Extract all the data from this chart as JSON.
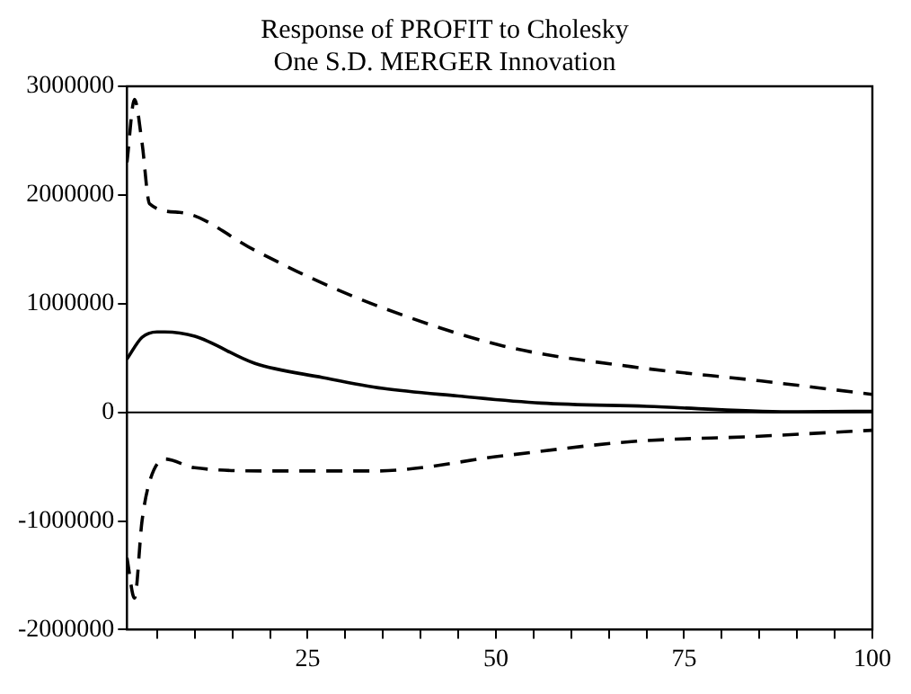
{
  "chart_data": {
    "type": "line",
    "title": [
      "Response of PROFIT to Cholesky",
      "One S.D. MERGER Innovation"
    ],
    "xlim": [
      1,
      100
    ],
    "xticks": [
      {
        "value": 5,
        "label": null
      },
      {
        "value": 10,
        "label": null
      },
      {
        "value": 15,
        "label": null
      },
      {
        "value": 20,
        "label": null
      },
      25,
      {
        "value": 30,
        "label": null
      },
      {
        "value": 35,
        "label": null
      },
      {
        "value": 40,
        "label": null
      },
      {
        "value": 45,
        "label": null
      },
      50,
      {
        "value": 55,
        "label": null
      },
      {
        "value": 60,
        "label": null
      },
      {
        "value": 65,
        "label": null
      },
      {
        "value": 70,
        "label": null
      },
      75,
      {
        "value": 80,
        "label": null
      },
      {
        "value": 85,
        "label": null
      },
      {
        "value": 90,
        "label": null
      },
      {
        "value": 95,
        "label": null
      },
      100
    ],
    "ylim": [
      -2000000,
      3000000
    ],
    "yticks": [
      -2000000,
      -1000000,
      0,
      1000000,
      2000000,
      3000000
    ],
    "grid": false,
    "legend": false,
    "marker": "none",
    "ref_lines": [
      {
        "axis": "y",
        "value": 0,
        "color": "#000000",
        "line_style": "solid"
      }
    ],
    "series": [
      {
        "color": "#000000",
        "line_style": "solid",
        "x": [
          1,
          3,
          5,
          6,
          10,
          18,
          27,
          35,
          45,
          56,
          70,
          89,
          100
        ],
        "values": [
          490000,
          690000,
          740000,
          740000,
          700000,
          450000,
          320000,
          220000,
          150000,
          85000,
          55000,
          5000,
          10000
        ]
      },
      {
        "color": "#000000",
        "line_style": "dashed",
        "x": [
          1,
          2,
          3,
          4,
          8,
          18,
          25,
          35,
          51,
          68,
          85,
          100
        ],
        "values": [
          2300000,
          2880000,
          2480000,
          1920000,
          1840000,
          1490000,
          1250000,
          960000,
          610000,
          420000,
          290000,
          165000
        ]
      },
      {
        "color": "#000000",
        "line_style": "dashed",
        "x": [
          1,
          2,
          3,
          4,
          6,
          10,
          20,
          34,
          51,
          68,
          85,
          100
        ],
        "values": [
          -1340000,
          -1710000,
          -1000000,
          -640000,
          -430000,
          -510000,
          -540000,
          -540000,
          -400000,
          -270000,
          -220000,
          -165000
        ]
      }
    ]
  }
}
